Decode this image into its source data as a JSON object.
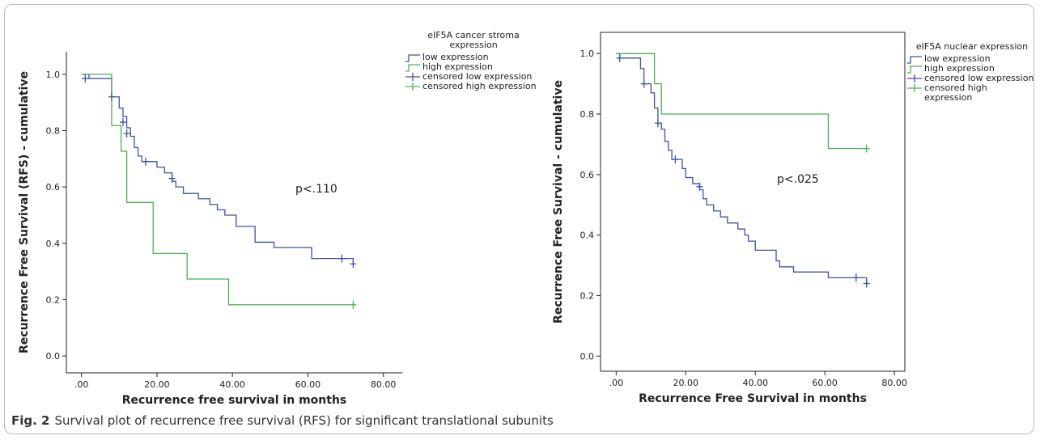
{
  "chart_data": [
    {
      "type": "step",
      "ylabel": "Recurrence Free Survival (RFS) - cumulative",
      "xlabel": "Recurrence free survival in months",
      "annotation": "p<.110",
      "legend_title": "eIF5A cancer stroma expression",
      "box": false,
      "xlim": [
        -4,
        85
      ],
      "ylim": [
        -0.06,
        1.08
      ],
      "xticks": [
        {
          "value": 0,
          "label": ".00"
        },
        {
          "value": 20,
          "label": "20.00"
        },
        {
          "value": 40,
          "label": "40.00"
        },
        {
          "value": 60,
          "label": "60.00"
        },
        {
          "value": 80,
          "label": "80.00"
        }
      ],
      "yticks": [
        {
          "value": 0,
          "label": "0.0"
        },
        0.2,
        0.4,
        0.6,
        0.8,
        {
          "value": 1,
          "label": "1.0"
        }
      ],
      "series": [
        {
          "name": "low expression",
          "color": "#3f51a3",
          "marker": "step",
          "x": [
            0,
            2,
            8,
            10,
            11,
            12,
            13,
            14,
            15,
            16,
            20,
            22,
            24,
            25,
            27,
            31,
            34,
            36,
            38,
            41,
            46,
            51,
            61,
            72
          ],
          "values": [
            1.0,
            0.985,
            0.92,
            0.88,
            0.85,
            0.81,
            0.78,
            0.74,
            0.71,
            0.69,
            0.67,
            0.65,
            0.62,
            0.6,
            0.577,
            0.558,
            0.538,
            0.519,
            0.5,
            0.46,
            0.404,
            0.385,
            0.346,
            0.327
          ]
        },
        {
          "name": "high expression",
          "color": "#4caf50",
          "marker": "step",
          "x": [
            0,
            8,
            10.5,
            12,
            19,
            28,
            39,
            72
          ],
          "values": [
            1.0,
            0.818,
            0.727,
            0.545,
            0.364,
            0.273,
            0.182,
            0.182
          ]
        },
        {
          "name": "censored low expression",
          "color": "#3f51a3",
          "marker": "plus",
          "x": [
            1,
            8,
            11,
            12,
            17,
            24,
            69,
            72
          ],
          "values": [
            0.985,
            0.92,
            0.83,
            0.79,
            0.69,
            0.63,
            0.346,
            0.327
          ]
        },
        {
          "name": "censored high expression",
          "color": "#4caf50",
          "marker": "plus",
          "x": [
            72
          ],
          "values": [
            0.182
          ]
        }
      ]
    },
    {
      "type": "step",
      "ylabel": "Recurrence Free Survival - cumulative",
      "xlabel": "Recurrence Free Survival in months",
      "annotation": "p<.025",
      "legend_title": "eIF5A nuclear expression",
      "box": true,
      "xlim": [
        -4.5,
        83
      ],
      "ylim": [
        -0.05,
        1.07
      ],
      "xticks": [
        {
          "value": 0,
          "label": ".00"
        },
        {
          "value": 20,
          "label": "20.00"
        },
        {
          "value": 40,
          "label": "40.00"
        },
        {
          "value": 60,
          "label": "60.00"
        },
        {
          "value": 80,
          "label": "80.00"
        }
      ],
      "yticks": [
        {
          "value": 0,
          "label": "0.0"
        },
        0.2,
        0.4,
        0.6,
        0.8,
        {
          "value": 1,
          "label": "1.0"
        }
      ],
      "series": [
        {
          "name": "low expression",
          "color": "#3f51a3",
          "marker": "step",
          "x": [
            0,
            1,
            7,
            8,
            10,
            11,
            12,
            13,
            14,
            15,
            16,
            19,
            20,
            22,
            24,
            25,
            26,
            28,
            30,
            32,
            35,
            37,
            38,
            40,
            46,
            47,
            51,
            61,
            72
          ],
          "values": [
            1.0,
            0.985,
            0.95,
            0.9,
            0.87,
            0.82,
            0.77,
            0.75,
            0.71,
            0.68,
            0.65,
            0.62,
            0.59,
            0.57,
            0.55,
            0.52,
            0.5,
            0.48,
            0.46,
            0.44,
            0.42,
            0.4,
            0.38,
            0.35,
            0.315,
            0.295,
            0.278,
            0.259,
            0.24
          ]
        },
        {
          "name": "high expression",
          "color": "#4caf50",
          "marker": "step",
          "x": [
            0,
            11,
            13,
            61,
            72
          ],
          "values": [
            1.0,
            0.9,
            0.8,
            0.686,
            0.686
          ]
        },
        {
          "name": "censored low expression",
          "color": "#3f51a3",
          "marker": "plus",
          "x": [
            1,
            8,
            12,
            17,
            24,
            69,
            72
          ],
          "values": [
            0.985,
            0.9,
            0.77,
            0.65,
            0.56,
            0.259,
            0.24
          ]
        },
        {
          "name": "censored high expression",
          "color": "#4caf50",
          "marker": "plus",
          "x": [
            72
          ],
          "values": [
            0.686
          ]
        }
      ]
    }
  ],
  "caption": {
    "label": "Fig. 2",
    "text": "Survival plot of recurrence free survival (RFS) for significant translational subunits"
  }
}
